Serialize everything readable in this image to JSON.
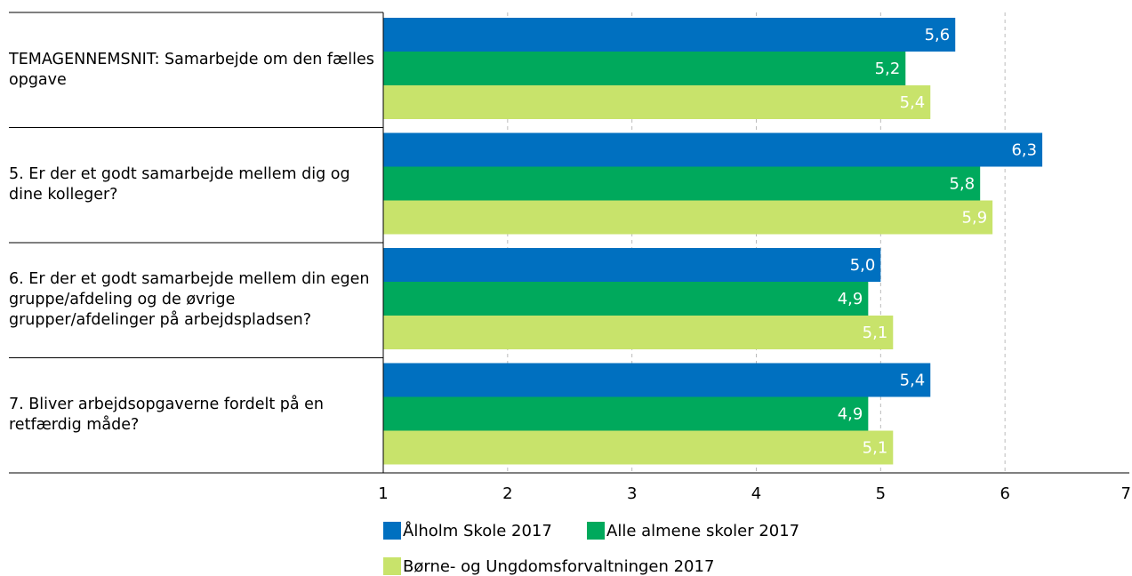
{
  "chart_data": {
    "type": "bar",
    "orientation": "horizontal",
    "categories": [
      "TEMAGENNEMSNIT: Samarbejde om den fælles opgave",
      "5. Er der et godt samarbejde mellem dig og dine kolleger?",
      "6. Er der et godt samarbejde mellem din egen gruppe/afdeling og de øvrige grupper/afdelinger på arbejdspladsen?",
      "7. Bliver arbejdsopgaverne fordelt på en retfærdig måde?"
    ],
    "series": [
      {
        "name": "Ålholm Skole 2017",
        "color": "#0070c0",
        "values": [
          5.6,
          6.3,
          5.0,
          5.4
        ],
        "value_labels": [
          "5,6",
          "6,3",
          "5,0",
          "5,4"
        ]
      },
      {
        "name": "Alle almene skoler 2017",
        "color": "#00a95c",
        "values": [
          5.2,
          5.8,
          4.9,
          4.9
        ],
        "value_labels": [
          "5,2",
          "5,8",
          "4,9",
          "4,9"
        ]
      },
      {
        "name": "Børne- og Ungdomsforvaltningen 2017",
        "color": "#c8e36b",
        "values": [
          5.4,
          5.9,
          5.1,
          5.1
        ],
        "value_labels": [
          "5,4",
          "5,9",
          "5,1",
          "5,1"
        ]
      }
    ],
    "xlim": [
      1,
      7
    ],
    "xticks": [
      1,
      2,
      3,
      4,
      5,
      6,
      7
    ],
    "grid": true,
    "legend": "bottom"
  }
}
